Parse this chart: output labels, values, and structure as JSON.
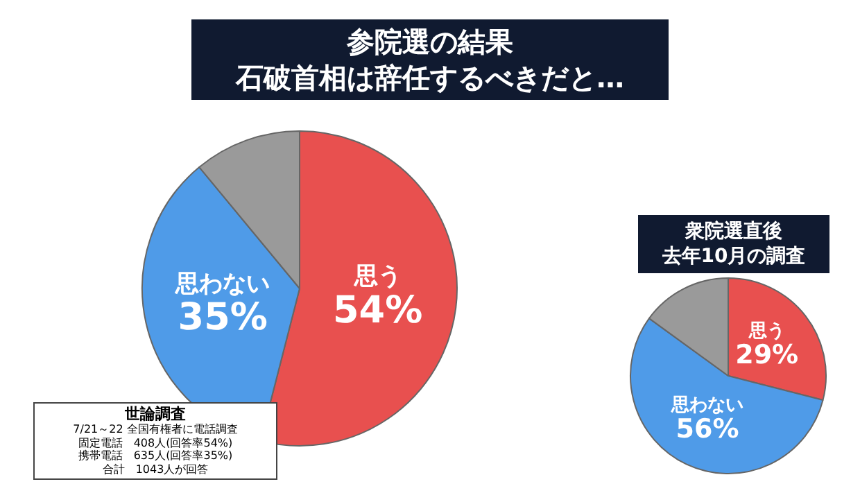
{
  "chart_data": [
    {
      "type": "pie",
      "title": "参院選の結果",
      "subtitle": "石破首相は辞任するべきだと…",
      "categories": [
        "思う",
        "思わない",
        null
      ],
      "values": [
        54,
        35,
        11
      ],
      "colors": [
        "#e8504f",
        "#4f9be8",
        "#9a9a9a"
      ],
      "value_labels": [
        "54%",
        "35%",
        null
      ],
      "annotations": [
        "世論調査",
        "7/21～22 全国有権者に電話調査",
        "固定電話　408人(回答率54%)",
        "携帯電話　635人(回答率35%)",
        "合計　1043人が回答"
      ]
    },
    {
      "type": "pie",
      "title": "衆院選直後",
      "subtitle": "去年10月の調査",
      "categories": [
        "思う",
        "思わない",
        null
      ],
      "values": [
        29,
        56,
        15
      ],
      "colors": [
        "#e8504f",
        "#4f9be8",
        "#9a9a9a"
      ],
      "value_labels": [
        "29%",
        "56%",
        null
      ]
    }
  ]
}
